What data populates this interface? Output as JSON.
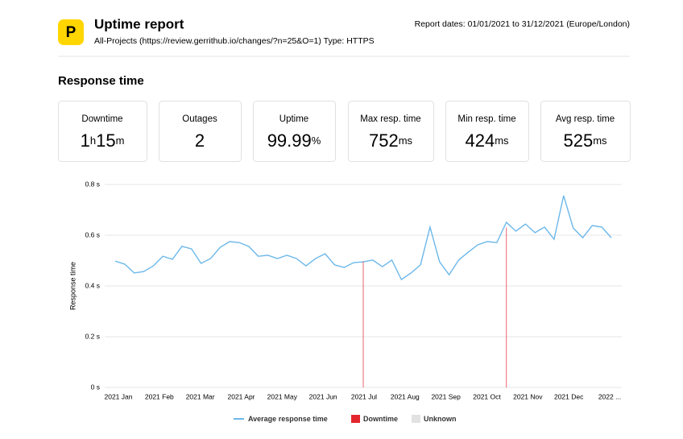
{
  "header": {
    "logo": "P",
    "title": "Uptime report",
    "subtitle": "All-Projects (https://review.gerrithub.io/changes/?n=25&O=1) Type: HTTPS",
    "dates": "Report dates: 01/01/2021 to 31/12/2021 (Europe/London)"
  },
  "section_title": "Response time",
  "cards": [
    {
      "label": "Downtime",
      "value": [
        "1",
        "h",
        "15",
        "m"
      ]
    },
    {
      "label": "Outages",
      "value": [
        "2"
      ]
    },
    {
      "label": "Uptime",
      "value": [
        "99.99",
        "%"
      ]
    },
    {
      "label": "Max resp. time",
      "value": [
        "752",
        "ms"
      ]
    },
    {
      "label": "Min resp. time",
      "value": [
        "424",
        "ms"
      ]
    },
    {
      "label": "Avg resp. time",
      "value": [
        "525",
        "ms"
      ]
    }
  ],
  "chart_data": {
    "type": "line",
    "ylabel": "Response time",
    "xtick_labels": [
      "2021 Jan",
      "2021 Feb",
      "2021 Mar",
      "2021 Apr",
      "2021 May",
      "2021 Jun",
      "2021 Jul",
      "2021 Aug",
      "2021 Sep",
      "2021 Oct",
      "2021 Nov",
      "2021 Dec",
      "2022 ..."
    ],
    "ylim": [
      0,
      0.8
    ],
    "yticks": [
      {
        "value": 0,
        "label": "0 s"
      },
      {
        "value": 0.2,
        "label": "0.2 s"
      },
      {
        "value": 0.4,
        "label": "0.4 s"
      },
      {
        "value": 0.6,
        "label": "0.6 s"
      },
      {
        "value": 0.8,
        "label": "0.8 s"
      }
    ],
    "grid": true,
    "series": [
      {
        "name": "Average response time",
        "color": "#6cb8ea",
        "values": [
          0.498,
          0.486,
          0.451,
          0.457,
          0.479,
          0.517,
          0.505,
          0.556,
          0.546,
          0.489,
          0.508,
          0.552,
          0.575,
          0.571,
          0.556,
          0.517,
          0.521,
          0.508,
          0.521,
          0.508,
          0.479,
          0.508,
          0.527,
          0.483,
          0.473,
          0.492,
          0.495,
          0.502,
          0.476,
          0.502,
          0.425,
          0.451,
          0.483,
          0.632,
          0.495,
          0.444,
          0.502,
          0.533,
          0.562,
          0.575,
          0.571,
          0.651,
          0.616,
          0.644,
          0.61,
          0.632,
          0.584,
          0.756,
          0.629,
          0.59,
          0.638,
          0.632,
          0.59
        ]
      },
      {
        "name": "Downtime",
        "color": "#e3262e",
        "values": [
          null,
          null,
          null,
          null,
          null,
          null,
          null,
          null,
          null,
          null,
          null,
          null,
          null,
          null,
          null,
          null,
          null,
          null,
          null,
          null,
          null,
          null,
          null,
          null,
          null,
          null,
          0.497,
          null,
          null,
          null,
          null,
          null,
          null,
          null,
          null,
          null,
          null,
          null,
          null,
          null,
          null,
          0.63,
          null,
          null,
          null,
          null,
          null,
          null,
          null,
          null,
          null,
          null,
          null
        ]
      },
      {
        "name": "Unknown",
        "color": "#e2e2e2",
        "values": [
          null,
          null,
          null,
          null,
          null,
          null,
          null,
          null,
          null,
          null,
          null,
          null,
          null,
          null,
          null,
          null,
          null,
          null,
          null,
          null,
          null,
          null,
          null,
          null,
          null,
          null,
          null,
          null,
          null,
          null,
          null,
          null,
          null,
          null,
          null,
          null,
          null,
          null,
          null,
          null,
          null,
          null,
          null,
          null,
          null,
          null,
          null,
          null,
          null,
          null,
          null,
          null,
          null
        ]
      }
    ]
  }
}
